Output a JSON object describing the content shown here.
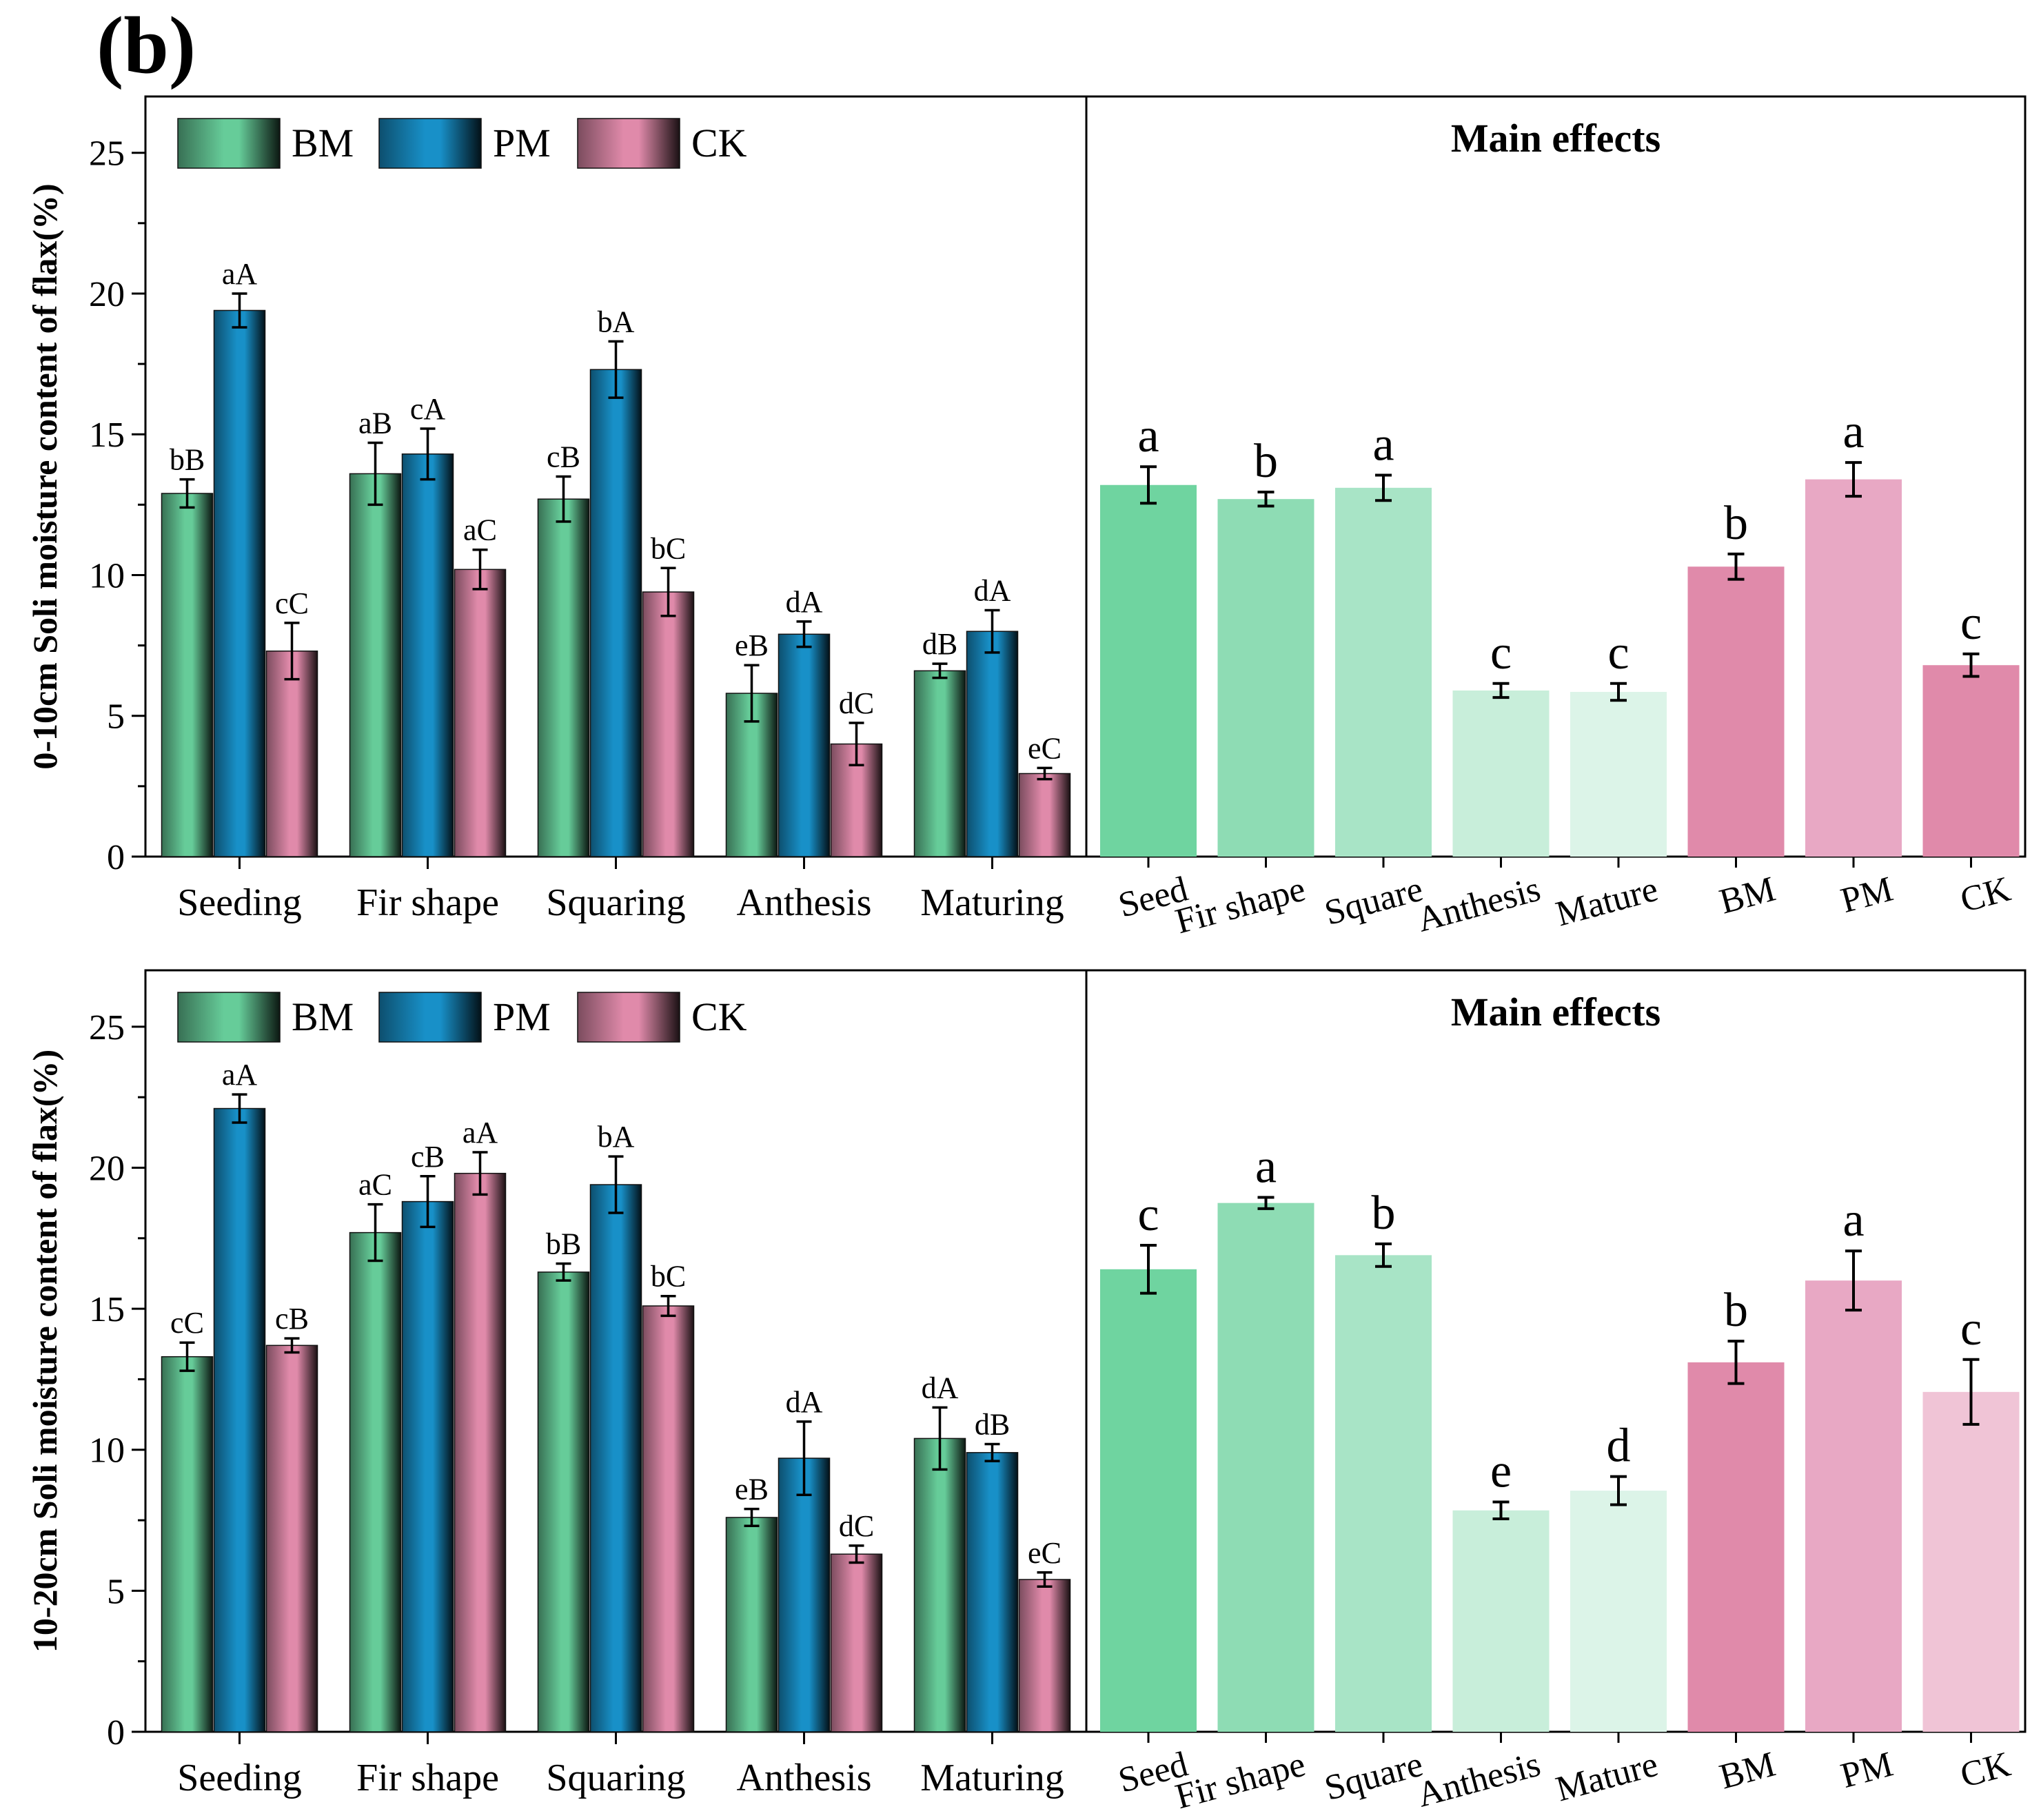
{
  "panel_label": "(b)",
  "colors": {
    "BM": "#66cc99",
    "PM": "#1890c8",
    "CK": "#e08aaa",
    "seed": "#6fd4a0",
    "fir": "#8edcb4",
    "square": "#a8e4c6",
    "anthesis": "#c8eeda",
    "mature": "#dcf4e8",
    "bm_main": "#e08aaa",
    "pm_main": "#e8a8c4",
    "ck_main": "#f0c4d6"
  },
  "chart_data": [
    {
      "id": "top-left",
      "type": "bar",
      "ylabel": "0-10cm Soli moisture content of flax(%)",
      "ylim": [
        0,
        27
      ],
      "yticks": [
        0,
        5,
        10,
        15,
        20,
        25
      ],
      "legend": [
        "BM",
        "PM",
        "CK"
      ],
      "categories": [
        "Seeding",
        "Fir shape",
        "Squaring",
        "Anthesis",
        "Maturing"
      ],
      "series": [
        {
          "name": "BM",
          "values": [
            12.9,
            13.6,
            12.7,
            5.8,
            6.6
          ],
          "errors": [
            0.5,
            1.1,
            0.8,
            1.0,
            0.25
          ],
          "labels": [
            "bB",
            "aB",
            "cB",
            "eB",
            "dB"
          ]
        },
        {
          "name": "PM",
          "values": [
            19.4,
            14.3,
            17.3,
            7.9,
            8.0
          ],
          "errors": [
            0.6,
            0.9,
            1.0,
            0.45,
            0.75
          ],
          "labels": [
            "aA",
            "cA",
            "bA",
            "dA",
            "dA"
          ]
        },
        {
          "name": "CK",
          "values": [
            7.3,
            10.2,
            9.4,
            4.0,
            2.95
          ],
          "errors": [
            1.0,
            0.7,
            0.85,
            0.75,
            0.2
          ],
          "labels": [
            "cC",
            "aC",
            "bC",
            "dC",
            "eC"
          ]
        }
      ]
    },
    {
      "id": "top-right",
      "type": "bar",
      "title": "Main effects",
      "ylim": [
        0,
        27
      ],
      "categories": [
        "Seed",
        "Fir shape",
        "Square",
        "Anthesis",
        "Mature",
        "BM",
        "PM",
        "CK"
      ],
      "values": [
        13.2,
        12.7,
        13.1,
        5.9,
        5.85,
        10.3,
        13.4,
        6.8
      ],
      "errors": [
        0.65,
        0.25,
        0.45,
        0.25,
        0.3,
        0.45,
        0.6,
        0.4
      ],
      "labels": [
        "a",
        "b",
        "a",
        "c",
        "c",
        "b",
        "a",
        "c"
      ],
      "color_keys": [
        "seed",
        "fir",
        "square",
        "anthesis",
        "mature",
        "bm_main",
        "pm_main",
        "bm_main"
      ]
    },
    {
      "id": "bottom-left",
      "type": "bar",
      "ylabel": "10-20cm Soli moisture content of flax(%)",
      "ylim": [
        0,
        27
      ],
      "yticks": [
        0,
        5,
        10,
        15,
        20,
        25
      ],
      "legend": [
        "BM",
        "PM",
        "CK"
      ],
      "categories": [
        "Seeding",
        "Fir shape",
        "Squaring",
        "Anthesis",
        "Maturing"
      ],
      "series": [
        {
          "name": "BM",
          "values": [
            13.3,
            17.7,
            16.3,
            7.6,
            10.4
          ],
          "errors": [
            0.5,
            1.0,
            0.3,
            0.3,
            1.1
          ],
          "labels": [
            "cC",
            "aC",
            "bB",
            "eB",
            "dA"
          ]
        },
        {
          "name": "PM",
          "values": [
            22.1,
            18.8,
            19.4,
            9.7,
            9.9
          ],
          "errors": [
            0.5,
            0.9,
            1.0,
            1.3,
            0.3
          ],
          "labels": [
            "aA",
            "cB",
            "bA",
            "dA",
            "dB"
          ]
        },
        {
          "name": "CK",
          "values": [
            13.7,
            19.8,
            15.1,
            6.3,
            5.4
          ],
          "errors": [
            0.25,
            0.75,
            0.35,
            0.3,
            0.25
          ],
          "labels": [
            "cB",
            "aA",
            "bC",
            "dC",
            "eC"
          ]
        }
      ]
    },
    {
      "id": "bottom-right",
      "type": "bar",
      "title": "Main effects",
      "ylim": [
        0,
        27
      ],
      "categories": [
        "Seed",
        "Fir shape",
        "Square",
        "Anthesis",
        "Mature",
        "BM",
        "PM",
        "CK"
      ],
      "values": [
        16.4,
        18.75,
        16.9,
        7.85,
        8.55,
        13.1,
        16.0,
        12.05
      ],
      "errors": [
        0.85,
        0.2,
        0.4,
        0.3,
        0.5,
        0.75,
        1.05,
        1.15
      ],
      "labels": [
        "c",
        "a",
        "b",
        "e",
        "d",
        "b",
        "a",
        "c"
      ],
      "color_keys": [
        "seed",
        "fir",
        "square",
        "anthesis",
        "mature",
        "bm_main",
        "pm_main",
        "ck_main"
      ]
    }
  ]
}
